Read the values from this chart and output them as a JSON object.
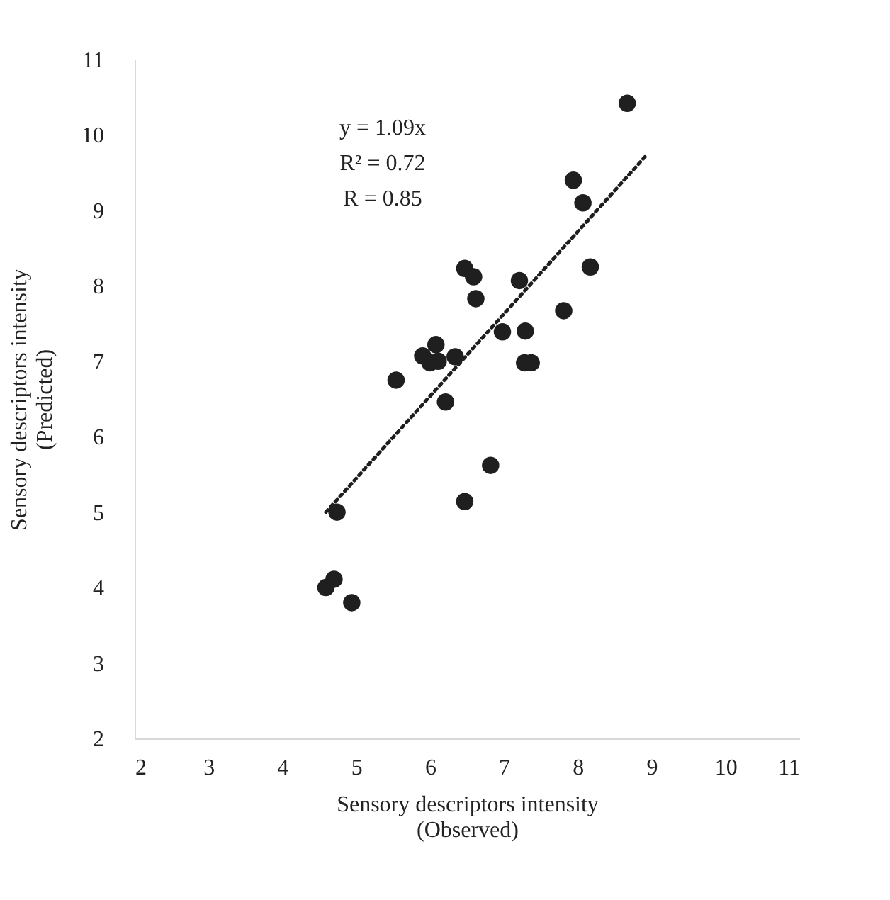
{
  "chart_data": {
    "type": "scatter",
    "xlabel": "Sensory descriptors intensity\n(Observed)",
    "ylabel": "Sensory descriptors intensity\n(Predicted)",
    "xlim": [
      2,
      11
    ],
    "xticks": [
      2,
      3,
      4,
      5,
      6,
      7,
      8,
      9,
      10,
      11
    ],
    "ylim": [
      2,
      11
    ],
    "yticks": [
      2,
      3,
      4,
      5,
      6,
      7,
      8,
      9,
      10,
      11
    ],
    "grid": false,
    "annotations": [
      "y = 1.09x",
      "R² = 0.72",
      "R = 0.85"
    ],
    "series": [
      {
        "marker": "circle",
        "color": "#1f1f1f",
        "x": [
          8.67,
          7.94,
          8.07,
          8.17,
          7.81,
          6.47,
          6.59,
          6.62,
          7.21,
          6.98,
          7.29,
          7.28,
          7.37,
          6.08,
          5.9,
          6.0,
          6.11,
          6.34,
          5.54,
          6.21,
          6.82,
          6.47,
          4.74,
          4.7,
          4.59,
          4.94
        ],
        "values": [
          10.42,
          9.4,
          9.1,
          8.25,
          7.67,
          8.23,
          8.12,
          7.83,
          8.07,
          7.39,
          7.4,
          6.98,
          6.98,
          7.22,
          7.07,
          6.98,
          7.0,
          7.06,
          6.75,
          6.46,
          5.62,
          5.14,
          5.0,
          4.11,
          4.0,
          3.8
        ]
      },
      {
        "type": "line",
        "marker": "none",
        "color": "#1f1f1f",
        "line_style": "dotted",
        "x": [
          4.59,
          8.91
        ],
        "values": [
          5.0,
          9.71
        ]
      }
    ]
  }
}
